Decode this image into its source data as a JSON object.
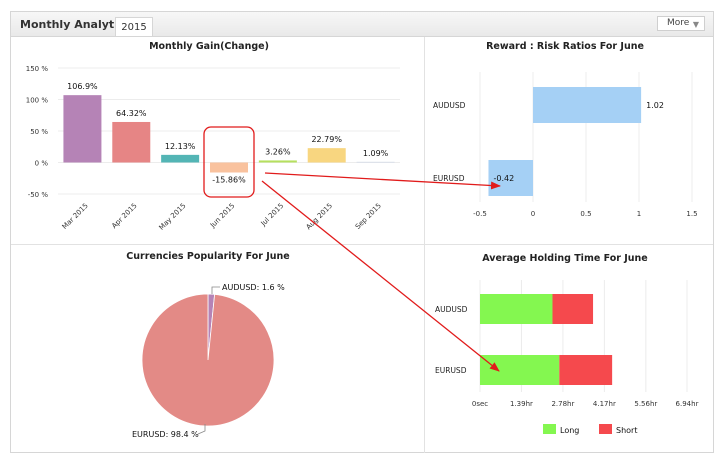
{
  "widget": {
    "title": "Monthly Analytics",
    "tab_label": "2015",
    "more_label": "More",
    "more_caret": "▼"
  },
  "chart_data": [
    {
      "type": "bar",
      "title": "Monthly Gain(Change)",
      "categories": [
        "Mar 2015",
        "Apr 2015",
        "May 2015",
        "Jun 2015",
        "Jul 2015",
        "Aug 2015",
        "Sep 2015"
      ],
      "values": [
        106.9,
        64.32,
        12.13,
        -15.86,
        3.26,
        22.79,
        1.09
      ],
      "data_labels": [
        "106.9%",
        "64.32%",
        "12.13%",
        "-15.86%",
        "3.26%",
        "22.79%",
        "1.09%"
      ],
      "colors": [
        "#b583b6",
        "#e68585",
        "#53b5b5",
        "#f9c29e",
        "#b6e05f",
        "#f8d680",
        "#cfd8e8"
      ],
      "ylim": [
        -50,
        150
      ],
      "yticks": [
        -50,
        0,
        50,
        100,
        150
      ],
      "ytick_labels": [
        "-50 %",
        "0 %",
        "50 %",
        "100 %",
        "150 %"
      ],
      "grid": true,
      "highlighted_category": "Jun 2015"
    },
    {
      "type": "bar",
      "orientation": "horizontal",
      "title": "Reward : Risk Ratios For June",
      "categories": [
        "AUDUSD",
        "EURUSD"
      ],
      "values": [
        1.02,
        -0.42
      ],
      "data_labels": [
        "1.02",
        "-0.42"
      ],
      "colors": [
        "#a5d0f5",
        "#a5d0f5"
      ],
      "xlim": [
        -0.5,
        1.5
      ],
      "xticks": [
        -0.5,
        0,
        0.5,
        1,
        1.5
      ],
      "xtick_labels": [
        "-0.5",
        "0",
        "0.5",
        "1",
        "1.5"
      ]
    },
    {
      "type": "pie",
      "title": "Currencies Popularity For June",
      "slices": [
        {
          "name": "AUDUSD",
          "value": 1.6,
          "label": "AUDUSD: 1.6 %",
          "color": "#b583b6"
        },
        {
          "name": "EURUSD",
          "value": 98.4,
          "label": "EURUSD: 98.4 %",
          "color": "#e38a86"
        }
      ]
    },
    {
      "type": "bar",
      "orientation": "horizontal",
      "stacked": true,
      "title": "Average Holding Time For June",
      "categories": [
        "AUDUSD",
        "EURUSD"
      ],
      "series": [
        {
          "name": "Long",
          "values": [
            2.43,
            2.66
          ],
          "color": "#84f750"
        },
        {
          "name": "Short",
          "values": [
            1.36,
            1.77
          ],
          "color": "#f5494d"
        }
      ],
      "xlim": [
        0,
        6.94
      ],
      "xticks": [
        0,
        1.39,
        2.78,
        4.17,
        5.56,
        6.94
      ],
      "xtick_labels": [
        "0sec",
        "1.39hr",
        "2.78hr",
        "4.17hr",
        "5.56hr",
        "6.94hr"
      ],
      "legend": "bottom"
    }
  ],
  "annotations": {
    "highlight_color": "#e11b1b",
    "arrow_color": "#e11b1b"
  }
}
